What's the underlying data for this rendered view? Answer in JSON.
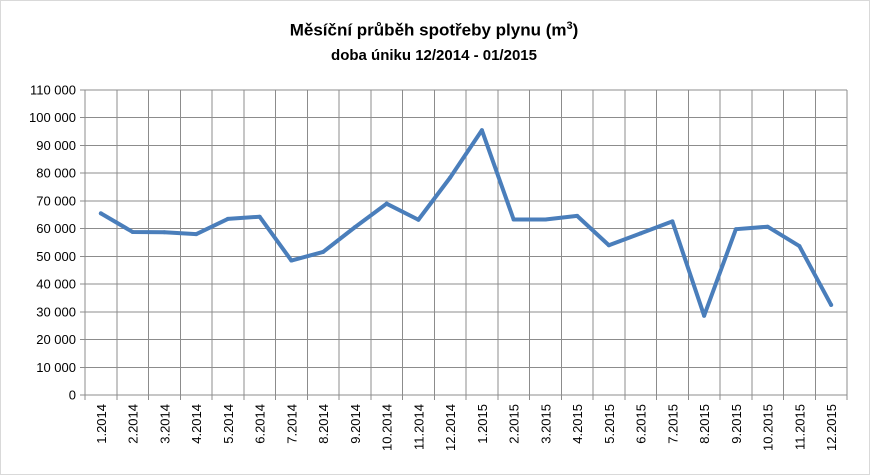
{
  "title": {
    "main": "Měsíční průběh spotřeby plynu (m",
    "superscript": "3",
    "closing": ")",
    "subtitle": "doba úniku 12/2014 - 01/2015"
  },
  "chart_data": {
    "type": "line",
    "title": "Měsíční průběh spotřeby plynu (m3)",
    "subtitle": "doba úniku 12/2014 - 01/2015",
    "xlabel": "",
    "ylabel": "",
    "ylim": [
      0,
      110000
    ],
    "y_ticks": [
      0,
      10000,
      20000,
      30000,
      40000,
      50000,
      60000,
      70000,
      80000,
      90000,
      100000,
      110000
    ],
    "y_tick_labels": [
      "0",
      "10 000",
      "20 000",
      "30 000",
      "40 000",
      "50 000",
      "60 000",
      "70 000",
      "80 000",
      "90 000",
      "100 000",
      "110 000"
    ],
    "grid": true,
    "legend": "none",
    "categories": [
      "1.2014",
      "2.2014",
      "3.2014",
      "4.2014",
      "5.2014",
      "6.2014",
      "7.2014",
      "8.2014",
      "9.2014",
      "10.2014",
      "11.2014",
      "12.2014",
      "1.2015",
      "2.2015",
      "3.2015",
      "4.2015",
      "5.2015",
      "6.2015",
      "7.2015",
      "8.2015",
      "9.2015",
      "10.2015",
      "11.2015",
      "12.2015"
    ],
    "series": [
      {
        "color": "#4a7ebb",
        "values": [
          65500,
          58800,
          58700,
          58000,
          63500,
          64300,
          48500,
          51600,
          60500,
          69000,
          63200,
          78400,
          95500,
          63300,
          63300,
          64600,
          54000,
          58300,
          62600,
          28600,
          59800,
          60700,
          53700,
          32500
        ]
      }
    ]
  }
}
